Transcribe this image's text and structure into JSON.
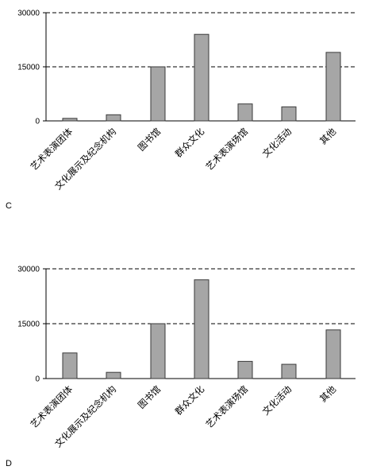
{
  "chart_data": [
    {
      "type": "bar",
      "panel_label": "C",
      "categories": [
        "艺术表演团体",
        "文化展示及纪念机构",
        "图书馆",
        "群众文化",
        "艺术表演场馆",
        "文化活动",
        "其他"
      ],
      "values": [
        700,
        1700,
        15000,
        24000,
        4700,
        3900,
        19000
      ],
      "yticks": [
        "0",
        "15000",
        "30000"
      ],
      "ylim": [
        0,
        30000
      ],
      "grid": "dashed horizontal lines at 15000 and 30000",
      "legend": "none"
    },
    {
      "type": "bar",
      "panel_label": "D",
      "categories": [
        "艺术表演团体",
        "文化展示及纪念机构",
        "图书馆",
        "群众文化",
        "艺术表演场馆",
        "文化活动",
        "其他"
      ],
      "values": [
        7000,
        1700,
        15000,
        27000,
        4700,
        3900,
        13300
      ],
      "yticks": [
        "0",
        "15000",
        "30000"
      ],
      "ylim": [
        0,
        30000
      ],
      "grid": "dashed horizontal lines at 15000 and 30000",
      "legend": "none"
    }
  ]
}
